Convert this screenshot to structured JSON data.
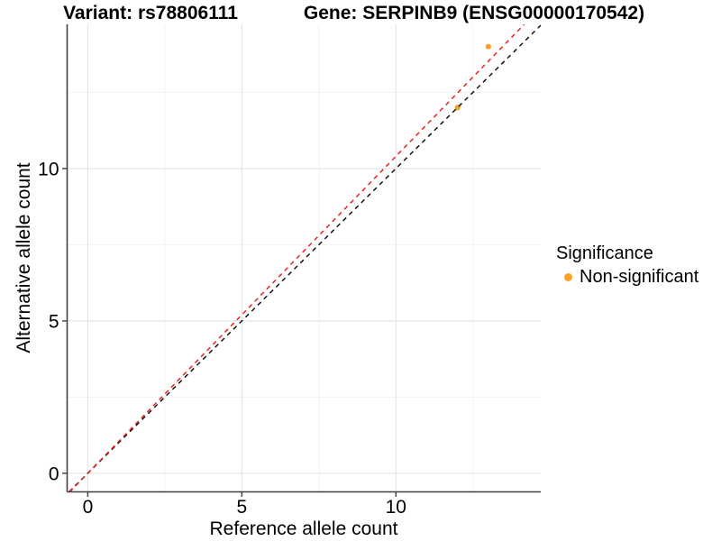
{
  "titles": {
    "variant": "Variant: rs78806111",
    "gene": "Gene: SERPINB9 (ENSG00000170542)"
  },
  "legend": {
    "title": "Significance",
    "items": [
      {
        "label": "Non-significant",
        "color": "#FCA128"
      }
    ]
  },
  "chart_data": {
    "type": "scatter",
    "title": "Variant: rs78806111 — Gene: SERPINB9 (ENSG00000170542)",
    "xlabel": "Reference allele count",
    "ylabel": "Alternative allele count",
    "xlim": [
      -0.67,
      14.7
    ],
    "ylim": [
      -0.61,
      14.73
    ],
    "x_ticks": [
      0,
      5,
      10
    ],
    "y_ticks": [
      0,
      5,
      10
    ],
    "x_minor_ticks": [
      2.5,
      7.5,
      12.5
    ],
    "y_minor_ticks": [
      2.5,
      7.5,
      12.5
    ],
    "grid": true,
    "legend_position": "right",
    "series": [
      {
        "name": "Non-significant",
        "color": "#FCA128",
        "points": [
          {
            "x": 12,
            "y": 12
          },
          {
            "x": 13,
            "y": 14
          }
        ]
      }
    ],
    "reference_lines": [
      {
        "name": "identity",
        "slope": 1,
        "intercept": 0,
        "style": "dashed",
        "color": "#111111"
      },
      {
        "name": "allelic-ratio",
        "slope": 1.04,
        "intercept": 0,
        "style": "dashed",
        "color": "#E8231D"
      }
    ]
  },
  "colors": {
    "axis": "#404040",
    "grid_major": "#e5e5e5",
    "grid_minor": "#f2f2f2",
    "point": "#FCA128"
  }
}
